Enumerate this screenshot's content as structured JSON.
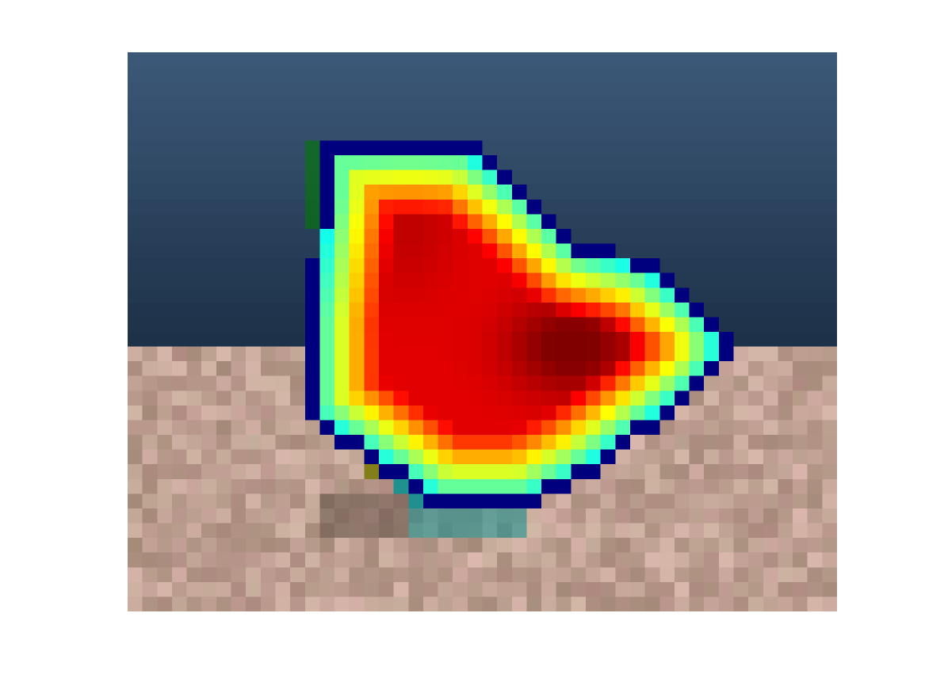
{
  "figure": {
    "background": "#ffffff"
  },
  "image": {
    "description_icon": "heatmap-overlay-image",
    "grid": {
      "cols": 48,
      "rows": 38
    },
    "scene": {
      "sky_top": "#3c5878",
      "sky_bottom": "#1d3148",
      "ground_base": "#bfa292",
      "horizon_row": 20
    },
    "colormap": "jet",
    "colors": {
      "outline": "#00007f",
      "shadow_object": "#0d8f8f",
      "green_object": "#007a00",
      "olive_object": "#7a7a00"
    }
  }
}
